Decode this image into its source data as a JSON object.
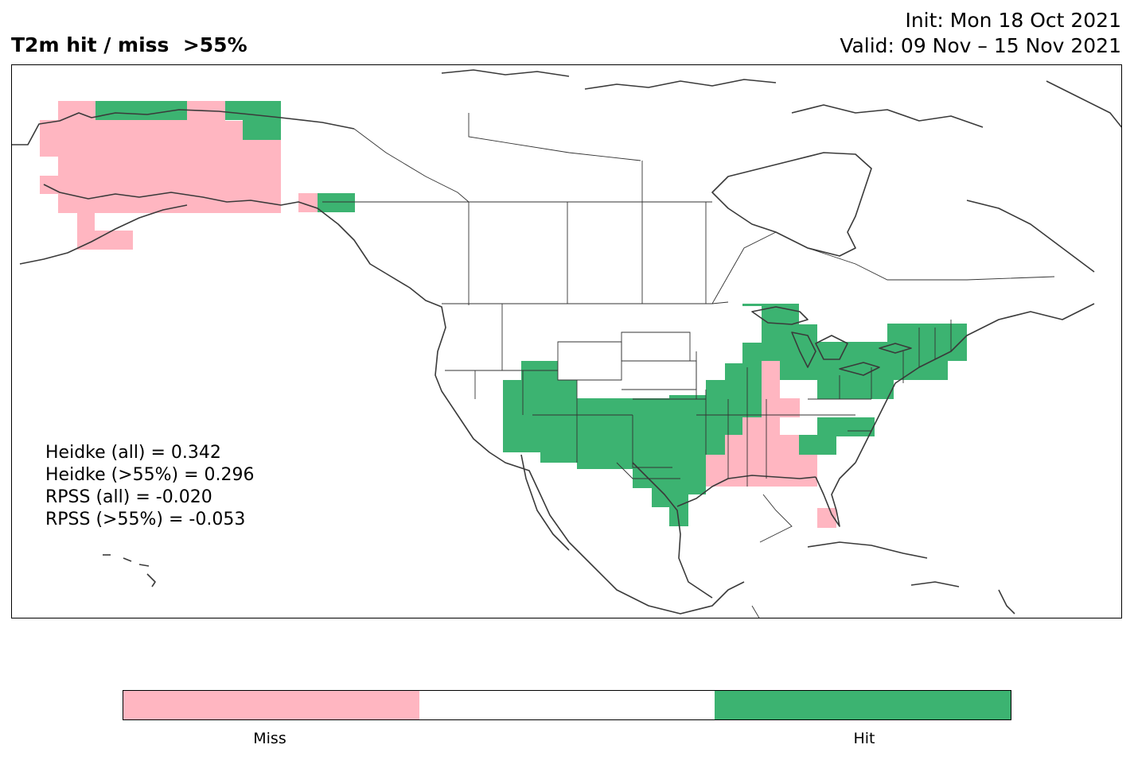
{
  "title": {
    "left": "T2m hit / miss  >55%",
    "init": "Init: Mon 18 Oct 2021",
    "valid": "Valid: 09 Nov – 15 Nov 2021"
  },
  "stats": [
    "Heidke (all) = 0.342",
    "Heidke (>55%) = 0.296",
    "RPSS (all) = -0.020",
    "RPSS (>55%) = -0.053"
  ],
  "colorbar": {
    "labels": [
      "Miss",
      "Hit"
    ],
    "colors": {
      "miss": "#ffb6c1",
      "neutral": "#ffffff",
      "hit": "#3cb371"
    }
  }
}
